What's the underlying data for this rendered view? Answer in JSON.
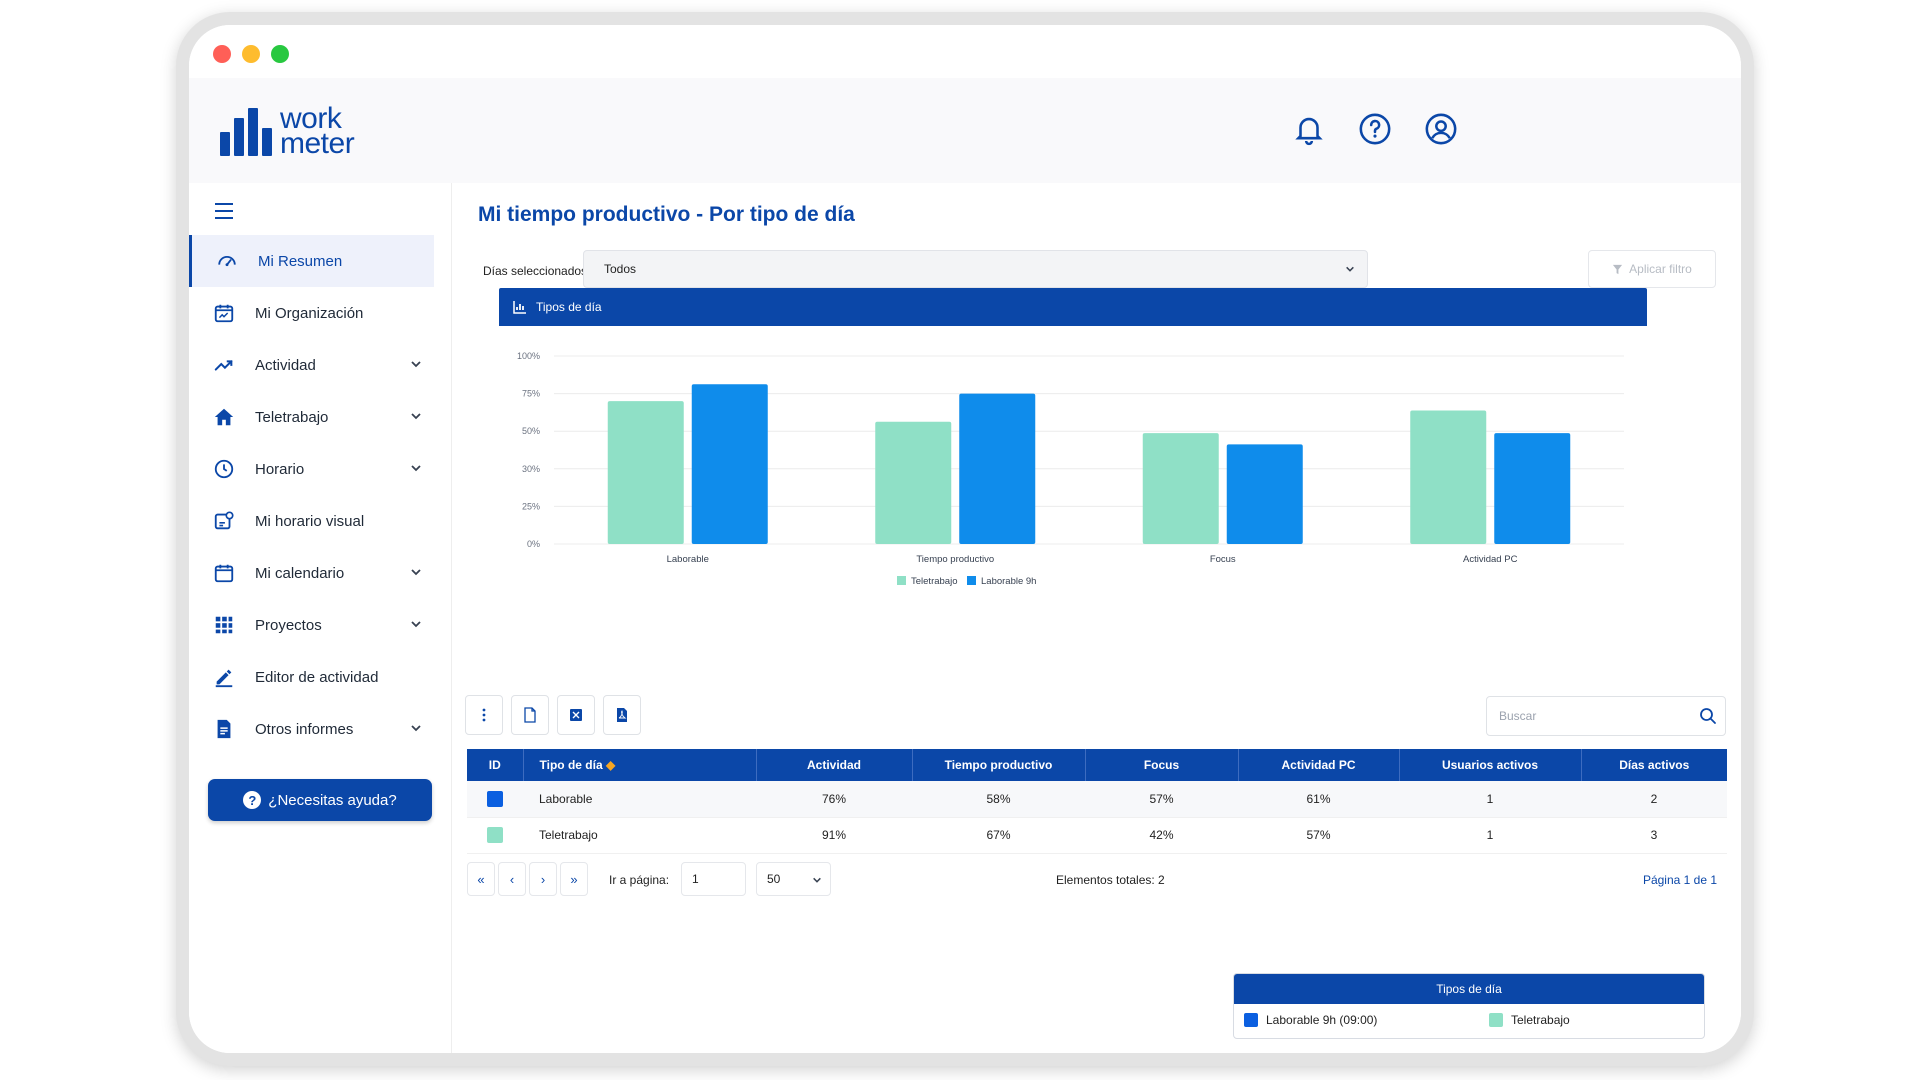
{
  "app": {
    "logo_line1": "work",
    "logo_line2": "meter"
  },
  "header": {
    "icons": [
      "bell-icon",
      "help-circle-icon",
      "user-circle-icon"
    ]
  },
  "sidebar": {
    "items": [
      {
        "label": "Mi Resumen",
        "icon": "gauge-icon",
        "active": true,
        "expandable": false
      },
      {
        "label": "Mi Organización",
        "icon": "calendar-chart-icon",
        "expandable": false
      },
      {
        "label": "Actividad",
        "icon": "trend-icon",
        "expandable": true
      },
      {
        "label": "Teletrabajo",
        "icon": "home-work-icon",
        "expandable": true
      },
      {
        "label": "Horario",
        "icon": "clock-icon",
        "expandable": true
      },
      {
        "label": "Mi horario visual",
        "icon": "visual-schedule-icon",
        "expandable": false
      },
      {
        "label": "Mi calendario",
        "icon": "calendar-icon",
        "expandable": true
      },
      {
        "label": "Proyectos",
        "icon": "grid-icon",
        "expandable": true
      },
      {
        "label": "Editor de actividad",
        "icon": "pencil-icon",
        "expandable": false
      },
      {
        "label": "Otros informes",
        "icon": "report-icon",
        "expandable": true
      }
    ],
    "help_label": "¿Necesitas ayuda?"
  },
  "main": {
    "title": "Mi tiempo productivo - Por tipo de día",
    "filter": {
      "label": "Días seleccionados",
      "value": "Todos",
      "apply_label": "Aplicar filtro"
    },
    "chart_title": "Tipos de día",
    "search_placeholder": "Buscar"
  },
  "chart_data": {
    "type": "bar",
    "title": "Tipos de día",
    "categories": [
      "Laborable",
      "Tiempo productivo",
      "Focus",
      "Actividad PC"
    ],
    "series": [
      {
        "name": "Teletrabajo",
        "color": "#8fe0c6",
        "values": [
          76,
          65,
          59,
          71
        ]
      },
      {
        "name": "Laborable 9h",
        "color": "#0f8ceb",
        "values": [
          85,
          80,
          53,
          59
        ]
      }
    ],
    "yticks": [
      "100%",
      "75%",
      "50%",
      "30%",
      "25%",
      "0%"
    ],
    "ylim": [
      0,
      100
    ],
    "legend_position": "bottom"
  },
  "table": {
    "columns": [
      "ID",
      "Tipo de día",
      "Actividad",
      "Tiempo productivo",
      "Focus",
      "Actividad PC",
      "Usuarios activos",
      "Días activos"
    ],
    "rows": [
      {
        "color": "#0b5fe0",
        "tipo": "Laborable",
        "actividad": "76%",
        "tiempo": "58%",
        "focus": "57%",
        "pc": "61%",
        "usuarios": "1",
        "dias": "2"
      },
      {
        "color": "#8fe0c6",
        "tipo": "Teletrabajo",
        "actividad": "91%",
        "tiempo": "67%",
        "focus": "42%",
        "pc": "57%",
        "usuarios": "1",
        "dias": "3"
      }
    ]
  },
  "pager": {
    "first": "«",
    "prev": "‹",
    "next": "›",
    "last": "»",
    "goto_label": "Ir a página:",
    "goto_value": "1",
    "page_size": "50",
    "total": "Elementos totales: 2",
    "page": "Página 1 de 1"
  },
  "legend_box": {
    "title": "Tipos de día",
    "items": [
      {
        "label": "Laborable 9h (09:00)",
        "color": "#0b5fe0"
      },
      {
        "label": "Teletrabajo",
        "color": "#8fe0c6"
      }
    ]
  }
}
